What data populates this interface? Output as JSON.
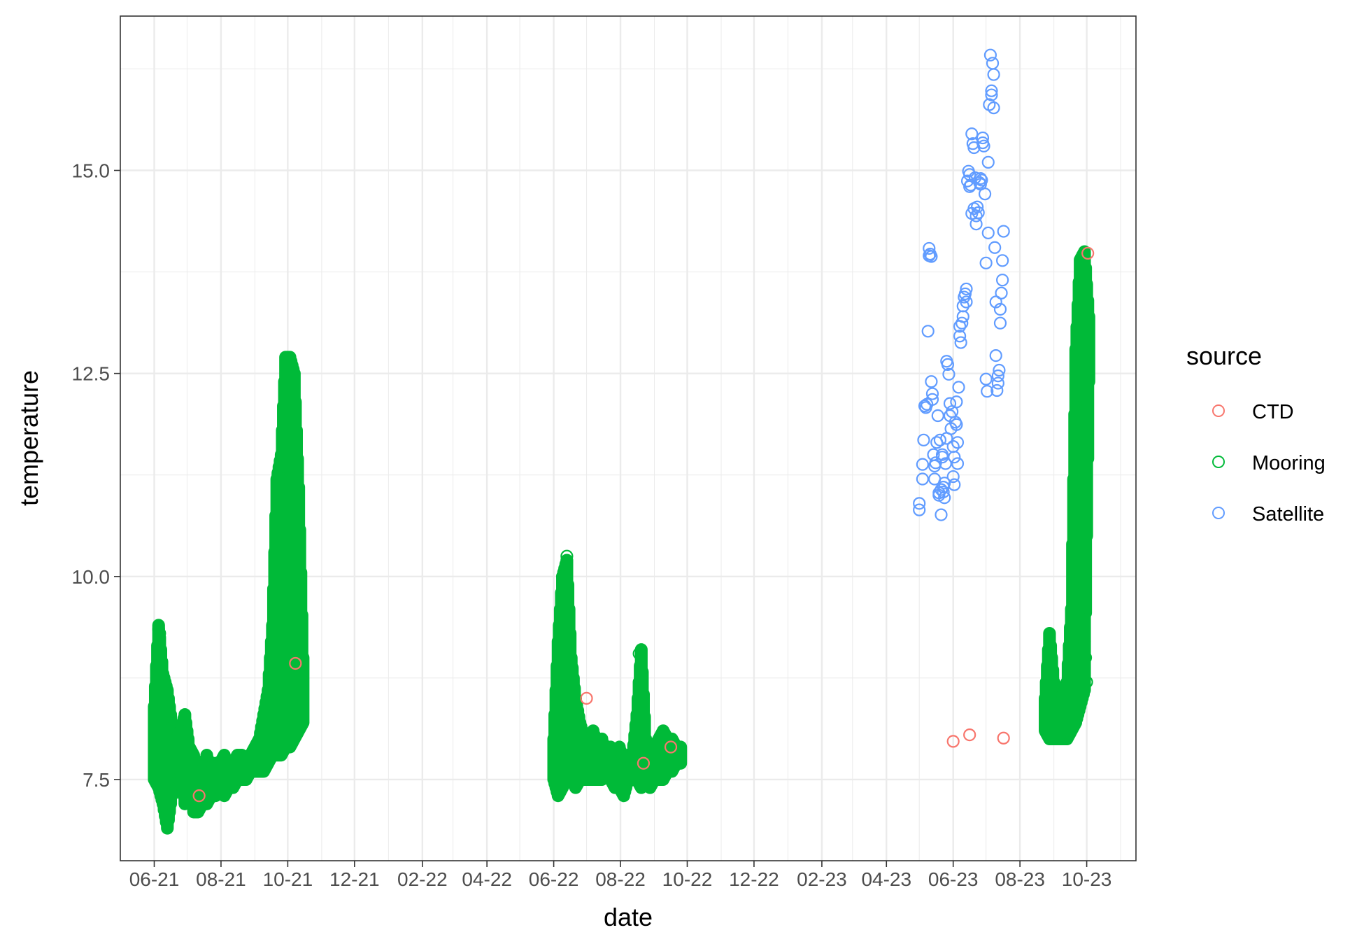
{
  "chart_data": {
    "type": "scatter",
    "title": "",
    "xlabel": "date",
    "ylabel": "temperature",
    "x_axis": {
      "type": "date",
      "range": [
        "2021-05-01",
        "2023-11-15"
      ],
      "major_ticks": [
        "2021-06-01",
        "2021-08-01",
        "2021-10-01",
        "2021-12-01",
        "2022-02-01",
        "2022-04-01",
        "2022-06-01",
        "2022-08-01",
        "2022-10-01",
        "2022-12-01",
        "2023-02-01",
        "2023-04-01",
        "2023-06-01",
        "2023-08-01",
        "2023-10-01"
      ],
      "tick_labels": [
        "06-21",
        "08-21",
        "10-21",
        "12-21",
        "02-22",
        "04-22",
        "06-22",
        "08-22",
        "10-22",
        "12-22",
        "02-23",
        "04-23",
        "06-23",
        "08-23",
        "10-23"
      ]
    },
    "y_axis": {
      "range": [
        6.5,
        16.9
      ],
      "major_ticks": [
        7.5,
        10.0,
        12.5,
        15.0
      ],
      "tick_labels": [
        "7.5",
        "10.0",
        "12.5",
        "15.0"
      ],
      "minor_ticks": [
        8.75,
        11.25,
        13.75,
        16.25
      ]
    },
    "grid": true,
    "legend": {
      "title": "source",
      "position": "right",
      "entries": [
        {
          "name": "CTD",
          "color": "#F8766D"
        },
        {
          "name": "Mooring",
          "color": "#00BA38"
        },
        {
          "name": "Satellite",
          "color": "#619CFF"
        }
      ]
    },
    "marker": "open-circle",
    "series": [
      {
        "name": "CTD",
        "color": "#F8766D",
        "points": [
          [
            "2021-07-12",
            7.3
          ],
          [
            "2021-10-08",
            8.93
          ],
          [
            "2022-07-01",
            8.5
          ],
          [
            "2022-08-22",
            7.7
          ],
          [
            "2022-09-16",
            7.9
          ],
          [
            "2023-06-01",
            7.97
          ],
          [
            "2023-06-16",
            8.05
          ],
          [
            "2023-07-17",
            8.01
          ],
          [
            "2023-10-02",
            13.98
          ]
        ]
      },
      {
        "name": "Mooring",
        "color": "#00BA38",
        "envelopes": [
          {
            "segment": "2021",
            "dates": [
              "2021-06-01",
              "2021-06-05",
              "2021-06-09",
              "2021-06-13",
              "2021-06-17",
              "2021-06-21",
              "2021-06-25",
              "2021-06-29",
              "2021-07-03",
              "2021-07-07",
              "2021-07-11",
              "2021-07-15",
              "2021-07-19",
              "2021-07-23",
              "2021-07-27",
              "2021-07-31",
              "2021-08-04",
              "2021-08-08",
              "2021-08-12",
              "2021-08-16",
              "2021-08-20",
              "2021-08-24",
              "2021-08-28",
              "2021-09-01",
              "2021-09-05",
              "2021-09-09",
              "2021-09-13",
              "2021-09-17",
              "2021-09-21",
              "2021-09-25",
              "2021-09-29",
              "2021-10-03",
              "2021-10-07",
              "2021-10-11",
              "2021-10-15"
            ],
            "min": [
              7.5,
              7.4,
              7.2,
              6.9,
              7.3,
              7.5,
              7.6,
              7.2,
              7.5,
              7.1,
              7.1,
              7.2,
              7.2,
              7.3,
              7.3,
              7.4,
              7.3,
              7.4,
              7.4,
              7.5,
              7.5,
              7.5,
              7.6,
              7.6,
              7.6,
              7.6,
              7.7,
              7.8,
              7.8,
              7.8,
              7.9,
              7.9,
              8.0,
              8.1,
              8.2
            ],
            "max": [
              8.4,
              9.4,
              8.8,
              8.6,
              8.2,
              8.0,
              8.1,
              8.3,
              7.9,
              7.8,
              7.6,
              7.6,
              7.8,
              7.6,
              7.7,
              7.7,
              7.8,
              7.6,
              7.7,
              7.8,
              7.8,
              7.7,
              7.8,
              7.9,
              8.0,
              8.3,
              8.6,
              9.4,
              11.2,
              11.5,
              12.7,
              12.7,
              12.5,
              11.1,
              9.0
            ]
          },
          {
            "segment": "2022",
            "dates": [
              "2022-06-01",
              "2022-06-05",
              "2022-06-09",
              "2022-06-13",
              "2022-06-17",
              "2022-06-21",
              "2022-06-25",
              "2022-06-29",
              "2022-07-03",
              "2022-07-07",
              "2022-07-11",
              "2022-07-15",
              "2022-07-19",
              "2022-07-23",
              "2022-07-27",
              "2022-07-31",
              "2022-08-04",
              "2022-08-08",
              "2022-08-12",
              "2022-08-16",
              "2022-08-20",
              "2022-08-24",
              "2022-08-28",
              "2022-09-01",
              "2022-09-05",
              "2022-09-09",
              "2022-09-13",
              "2022-09-17",
              "2022-09-21",
              "2022-09-25"
            ],
            "min": [
              7.5,
              7.3,
              7.4,
              7.6,
              7.5,
              7.4,
              7.5,
              7.5,
              7.5,
              7.5,
              7.5,
              7.5,
              7.6,
              7.5,
              7.4,
              7.4,
              7.3,
              7.5,
              7.5,
              7.5,
              7.4,
              7.5,
              7.4,
              7.5,
              7.5,
              7.5,
              7.6,
              7.6,
              7.7,
              7.7
            ],
            "max": [
              8.0,
              9.2,
              10.0,
              10.2,
              9.0,
              8.5,
              8.2,
              8.0,
              7.9,
              8.1,
              7.9,
              8.0,
              7.8,
              7.9,
              7.8,
              7.9,
              7.7,
              7.8,
              7.8,
              8.3,
              9.1,
              8.0,
              7.8,
              7.9,
              8.0,
              8.1,
              8.0,
              8.0,
              7.9,
              7.9
            ]
          },
          {
            "segment": "2023",
            "dates": [
              "2023-08-24",
              "2023-08-28",
              "2023-09-01",
              "2023-09-05",
              "2023-09-09",
              "2023-09-13",
              "2023-09-17",
              "2023-09-21",
              "2023-09-25",
              "2023-09-29",
              "2023-10-03"
            ],
            "min": [
              8.1,
              8.0,
              8.0,
              8.0,
              8.0,
              8.0,
              8.1,
              8.2,
              8.4,
              8.6,
              12.4
            ],
            "max": [
              8.5,
              9.3,
              8.7,
              8.6,
              8.5,
              8.7,
              9.6,
              12.8,
              13.9,
              14.0,
              13.2
            ]
          }
        ],
        "scattered_points": [
          [
            "2021-06-05",
            9.35
          ],
          [
            "2021-06-06",
            9.3
          ],
          [
            "2021-09-26",
            11.2
          ],
          [
            "2022-06-09",
            10.0
          ],
          [
            "2022-06-13",
            10.25
          ],
          [
            "2022-08-18",
            9.05
          ],
          [
            "2023-09-22",
            12.1
          ],
          [
            "2023-09-23",
            11.5
          ],
          [
            "2023-09-24",
            11.0
          ],
          [
            "2023-09-25",
            10.5
          ],
          [
            "2023-09-26",
            10.0
          ],
          [
            "2023-09-26",
            9.9
          ],
          [
            "2023-09-27",
            9.6
          ],
          [
            "2023-09-28",
            9.4
          ],
          [
            "2023-09-29",
            9.2
          ],
          [
            "2023-09-30",
            9.0
          ],
          [
            "2023-10-01",
            8.7
          ]
        ]
      },
      {
        "name": "Satellite",
        "color": "#619CFF",
        "points": [
          [
            "2023-05-01",
            10.9
          ],
          [
            "2023-05-01",
            10.82
          ],
          [
            "2023-05-04",
            11.2
          ],
          [
            "2023-05-04",
            11.38
          ],
          [
            "2023-05-05",
            11.68
          ],
          [
            "2023-05-06",
            12.1
          ],
          [
            "2023-05-07",
            12.08
          ],
          [
            "2023-05-08",
            12.12
          ],
          [
            "2023-05-09",
            13.02
          ],
          [
            "2023-05-10",
            14.04
          ],
          [
            "2023-05-10",
            13.95
          ],
          [
            "2023-05-11",
            13.97
          ],
          [
            "2023-05-12",
            13.94
          ],
          [
            "2023-05-12",
            12.4
          ],
          [
            "2023-05-13",
            12.25
          ],
          [
            "2023-05-13",
            12.18
          ],
          [
            "2023-05-14",
            11.5
          ],
          [
            "2023-05-15",
            11.36
          ],
          [
            "2023-05-15",
            11.2
          ],
          [
            "2023-05-16",
            11.4
          ],
          [
            "2023-05-17",
            11.65
          ],
          [
            "2023-05-18",
            11.98
          ],
          [
            "2023-05-19",
            11.03
          ],
          [
            "2023-05-19",
            11.0
          ],
          [
            "2023-05-20",
            11.68
          ],
          [
            "2023-05-21",
            10.76
          ],
          [
            "2023-05-21",
            11.07
          ],
          [
            "2023-05-22",
            11.5
          ],
          [
            "2023-05-22",
            11.47
          ],
          [
            "2023-05-23",
            11.04
          ],
          [
            "2023-05-23",
            11.1
          ],
          [
            "2023-05-24",
            11.15
          ],
          [
            "2023-05-24",
            10.97
          ],
          [
            "2023-05-25",
            11.39
          ],
          [
            "2023-05-26",
            11.7
          ],
          [
            "2023-05-26",
            12.65
          ],
          [
            "2023-05-27",
            12.61
          ],
          [
            "2023-05-28",
            12.49
          ],
          [
            "2023-05-29",
            12.13
          ],
          [
            "2023-05-29",
            11.98
          ],
          [
            "2023-05-30",
            11.82
          ],
          [
            "2023-05-31",
            12.03
          ],
          [
            "2023-06-01",
            11.6
          ],
          [
            "2023-06-01",
            11.23
          ],
          [
            "2023-06-02",
            11.13
          ],
          [
            "2023-06-02",
            11.47
          ],
          [
            "2023-06-03",
            11.9
          ],
          [
            "2023-06-04",
            11.87
          ],
          [
            "2023-06-04",
            12.15
          ],
          [
            "2023-06-05",
            11.65
          ],
          [
            "2023-06-05",
            11.39
          ],
          [
            "2023-06-06",
            12.33
          ],
          [
            "2023-06-07",
            13.08
          ],
          [
            "2023-06-07",
            12.96
          ],
          [
            "2023-06-08",
            12.88
          ],
          [
            "2023-06-09",
            13.12
          ],
          [
            "2023-06-10",
            13.33
          ],
          [
            "2023-06-10",
            13.2
          ],
          [
            "2023-06-11",
            13.44
          ],
          [
            "2023-06-12",
            13.48
          ],
          [
            "2023-06-13",
            13.54
          ],
          [
            "2023-06-13",
            13.38
          ],
          [
            "2023-06-14",
            14.87
          ],
          [
            "2023-06-15",
            14.99
          ],
          [
            "2023-06-16",
            14.95
          ],
          [
            "2023-06-16",
            14.8
          ],
          [
            "2023-06-17",
            14.82
          ],
          [
            "2023-06-18",
            14.47
          ],
          [
            "2023-06-18",
            15.45
          ],
          [
            "2023-06-19",
            15.33
          ],
          [
            "2023-06-20",
            15.28
          ],
          [
            "2023-06-20",
            14.53
          ],
          [
            "2023-06-21",
            14.91
          ],
          [
            "2023-06-22",
            14.44
          ],
          [
            "2023-06-22",
            14.34
          ],
          [
            "2023-06-23",
            14.55
          ],
          [
            "2023-06-24",
            14.48
          ],
          [
            "2023-06-25",
            14.85
          ],
          [
            "2023-06-26",
            14.9
          ],
          [
            "2023-06-26",
            14.83
          ],
          [
            "2023-06-27",
            14.88
          ],
          [
            "2023-06-28",
            15.34
          ],
          [
            "2023-06-28",
            15.4
          ],
          [
            "2023-06-29",
            15.3
          ],
          [
            "2023-06-30",
            14.71
          ],
          [
            "2023-07-01",
            13.86
          ],
          [
            "2023-07-01",
            12.43
          ],
          [
            "2023-07-02",
            12.28
          ],
          [
            "2023-07-03",
            14.23
          ],
          [
            "2023-07-03",
            15.1
          ],
          [
            "2023-07-04",
            15.81
          ],
          [
            "2023-07-05",
            16.42
          ],
          [
            "2023-07-06",
            15.98
          ],
          [
            "2023-07-06",
            15.93
          ],
          [
            "2023-07-07",
            16.32
          ],
          [
            "2023-07-08",
            16.18
          ],
          [
            "2023-07-08",
            15.77
          ],
          [
            "2023-07-09",
            14.05
          ],
          [
            "2023-07-10",
            13.38
          ],
          [
            "2023-07-10",
            12.72
          ],
          [
            "2023-07-11",
            12.29
          ],
          [
            "2023-07-12",
            12.38
          ],
          [
            "2023-07-12",
            12.47
          ],
          [
            "2023-07-13",
            12.54
          ],
          [
            "2023-07-14",
            13.12
          ],
          [
            "2023-07-14",
            13.29
          ],
          [
            "2023-07-15",
            13.49
          ],
          [
            "2023-07-16",
            13.65
          ],
          [
            "2023-07-16",
            13.89
          ],
          [
            "2023-07-17",
            14.25
          ]
        ]
      }
    ]
  }
}
